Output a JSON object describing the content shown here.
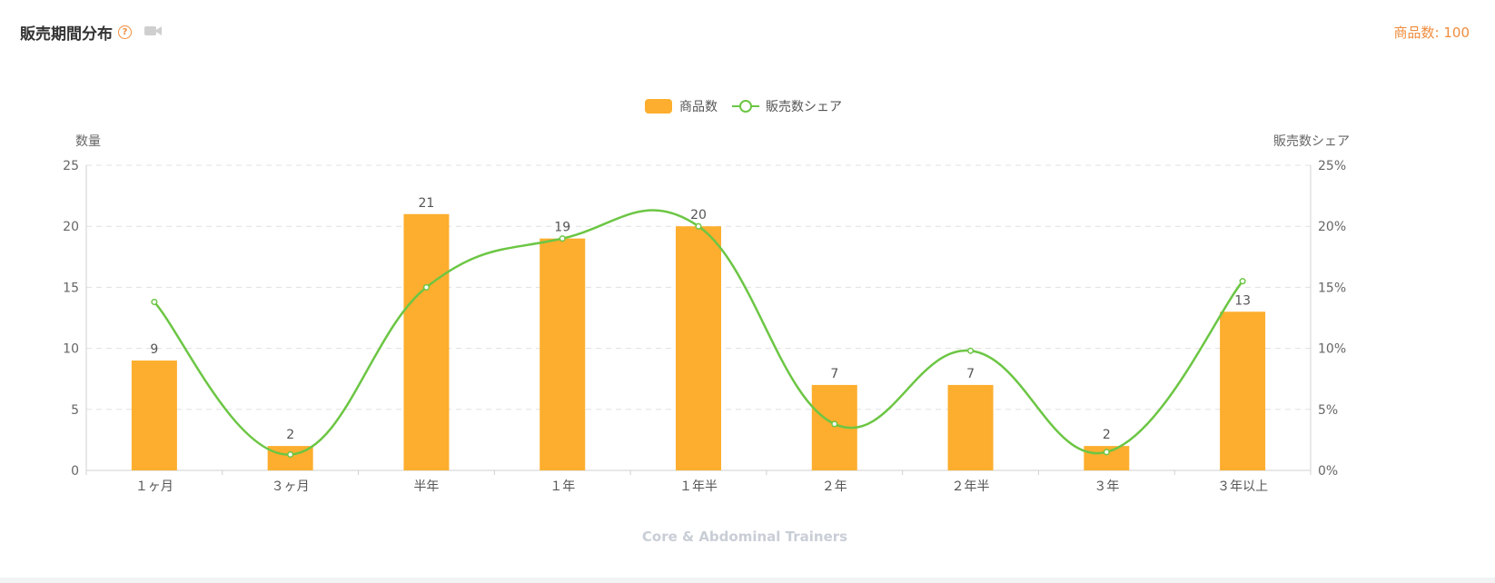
{
  "header": {
    "title": "販売期間分布",
    "help_icon": "question-circle-icon",
    "video_icon": "video-camera-icon",
    "count_label": "商品数: 100"
  },
  "chart_data": {
    "type": "bar",
    "categories": [
      "１ヶ月",
      "３ヶ月",
      "半年",
      "１年",
      "１年半",
      "２年",
      "２年半",
      "３年",
      "３年以上"
    ],
    "series": [
      {
        "name": "商品数",
        "type": "bar",
        "axis": "left",
        "color": "#fdae2e",
        "values": [
          9,
          2,
          21,
          19,
          20,
          7,
          7,
          2,
          13
        ]
      },
      {
        "name": "販売数シェア",
        "type": "line",
        "axis": "right",
        "color": "#6cc644",
        "values": [
          13.8,
          1.3,
          15,
          19,
          20,
          3.8,
          9.8,
          1.5,
          15.5
        ]
      }
    ],
    "y_left": {
      "label": "数量",
      "min": 0,
      "max": 25,
      "ticks": [
        "0",
        "5",
        "10",
        "15",
        "20",
        "25"
      ]
    },
    "y_right": {
      "label": "販売数シェア",
      "min": 0,
      "max": 25,
      "ticks": [
        "0%",
        "5%",
        "10%",
        "15%",
        "20%",
        "25%"
      ]
    },
    "subtitle": "Core & Abdominal Trainers",
    "legend_position": "top-center",
    "grid": "dashed-horizontal"
  }
}
